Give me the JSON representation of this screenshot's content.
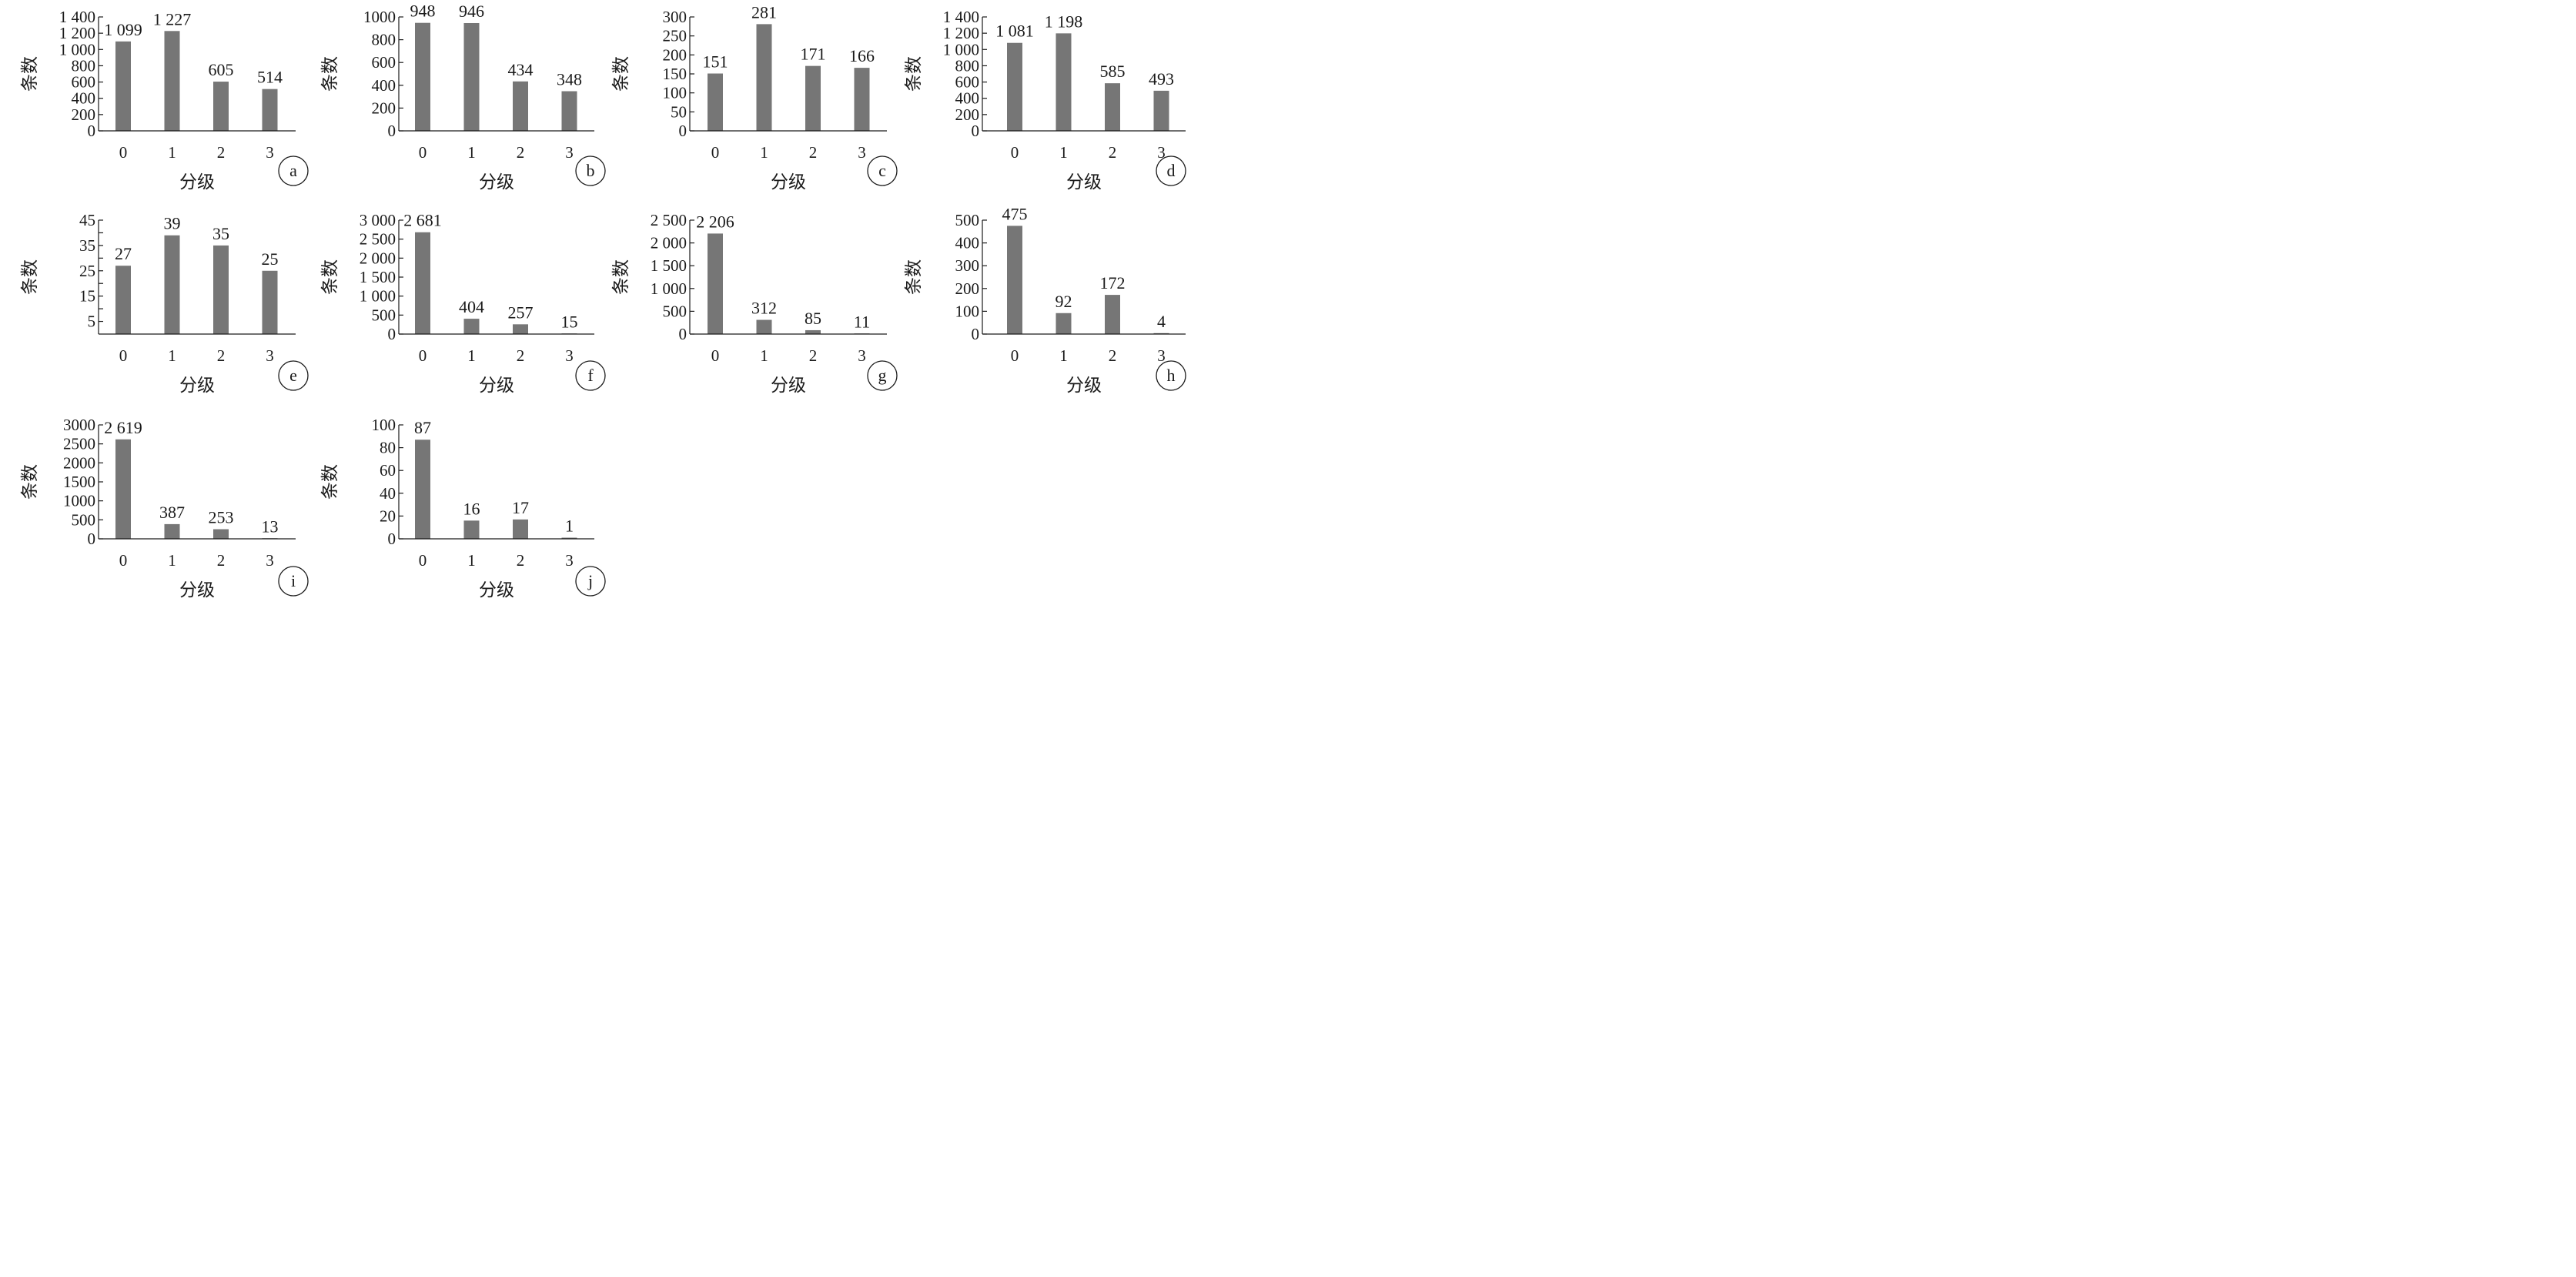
{
  "chart_data": [
    {
      "panel": "a",
      "type": "bar",
      "xlabel": "分级",
      "ylabel": "条数",
      "categories": [
        "0",
        "1",
        "2",
        "3"
      ],
      "values": [
        1099,
        1227,
        605,
        514
      ],
      "data_labels": [
        "1 099",
        "1 227",
        "605",
        "514"
      ],
      "ylim": [
        0,
        1400
      ],
      "yticks": [
        0,
        200,
        400,
        600,
        800,
        1000,
        1200,
        1400
      ],
      "ytick_labels": [
        "0",
        "200",
        "400",
        "600",
        "800",
        "1 000",
        "1 200",
        "1 400"
      ],
      "grid": false
    },
    {
      "panel": "b",
      "type": "bar",
      "xlabel": "分级",
      "ylabel": "条数",
      "categories": [
        "0",
        "1",
        "2",
        "3"
      ],
      "values": [
        948,
        946,
        434,
        348
      ],
      "data_labels": [
        "948",
        "946",
        "434",
        "348"
      ],
      "ylim": [
        0,
        1000
      ],
      "yticks": [
        0,
        200,
        400,
        600,
        800,
        1000
      ],
      "ytick_labels": [
        "0",
        "200",
        "400",
        "600",
        "800",
        "1000"
      ],
      "grid": false
    },
    {
      "panel": "c",
      "type": "bar",
      "xlabel": "分级",
      "ylabel": "条数",
      "categories": [
        "0",
        "1",
        "2",
        "3"
      ],
      "values": [
        151,
        281,
        171,
        166
      ],
      "data_labels": [
        "151",
        "281",
        "171",
        "166"
      ],
      "ylim": [
        0,
        300
      ],
      "yticks": [
        0,
        50,
        100,
        150,
        200,
        250,
        300
      ],
      "ytick_labels": [
        "0",
        "50",
        "100",
        "150",
        "200",
        "250",
        "300"
      ],
      "grid": false
    },
    {
      "panel": "d",
      "type": "bar",
      "xlabel": "分级",
      "ylabel": "条数",
      "categories": [
        "0",
        "1",
        "2",
        "3"
      ],
      "values": [
        1081,
        1198,
        585,
        493
      ],
      "data_labels": [
        "1 081",
        "1 198",
        "585",
        "493"
      ],
      "ylim": [
        0,
        1400
      ],
      "yticks": [
        0,
        200,
        400,
        600,
        800,
        1000,
        1200,
        1400
      ],
      "ytick_labels": [
        "0",
        "200",
        "400",
        "600",
        "800",
        "1 000",
        "1 200",
        "1 400"
      ],
      "grid": false
    },
    {
      "panel": "e",
      "type": "bar",
      "xlabel": "分级",
      "ylabel": "条数",
      "categories": [
        "0",
        "1",
        "2",
        "3"
      ],
      "values": [
        27,
        39,
        35,
        25
      ],
      "data_labels": [
        "27",
        "39",
        "35",
        "25"
      ],
      "ylim": [
        0,
        45
      ],
      "yticks": [
        5,
        15,
        25,
        35,
        45
      ],
      "ytick_labels": [
        "5",
        "15",
        "25",
        "35",
        "45"
      ],
      "minor_yticks": [
        10,
        20,
        30,
        40
      ],
      "grid": false
    },
    {
      "panel": "f",
      "type": "bar",
      "xlabel": "分级",
      "ylabel": "条数",
      "categories": [
        "0",
        "1",
        "2",
        "3"
      ],
      "values": [
        2681,
        404,
        257,
        15
      ],
      "data_labels": [
        "2 681",
        "404",
        "257",
        "15"
      ],
      "ylim": [
        0,
        3000
      ],
      "yticks": [
        0,
        500,
        1000,
        1500,
        2000,
        2500,
        3000
      ],
      "ytick_labels": [
        "0",
        "500",
        "1 000",
        "1 500",
        "2 000",
        "2 500",
        "3 000"
      ],
      "grid": false
    },
    {
      "panel": "g",
      "type": "bar",
      "xlabel": "分级",
      "ylabel": "条数",
      "categories": [
        "0",
        "1",
        "2",
        "3"
      ],
      "values": [
        2206,
        312,
        85,
        11
      ],
      "data_labels": [
        "2 206",
        "312",
        "85",
        "11"
      ],
      "ylim": [
        0,
        2500
      ],
      "yticks": [
        0,
        500,
        1000,
        1500,
        2000,
        2500
      ],
      "ytick_labels": [
        "0",
        "500",
        "1 000",
        "1 500",
        "2 000",
        "2 500"
      ],
      "grid": false
    },
    {
      "panel": "h",
      "type": "bar",
      "xlabel": "分级",
      "ylabel": "条数",
      "categories": [
        "0",
        "1",
        "2",
        "3"
      ],
      "values": [
        475,
        92,
        172,
        4
      ],
      "data_labels": [
        "475",
        "92",
        "172",
        "4"
      ],
      "ylim": [
        0,
        500
      ],
      "yticks": [
        0,
        100,
        200,
        300,
        400,
        500
      ],
      "ytick_labels": [
        "0",
        "100",
        "200",
        "300",
        "400",
        "500"
      ],
      "grid": false
    },
    {
      "panel": "i",
      "type": "bar",
      "xlabel": "分级",
      "ylabel": "条数",
      "categories": [
        "0",
        "1",
        "2",
        "3"
      ],
      "values": [
        2619,
        387,
        253,
        13
      ],
      "data_labels": [
        "2 619",
        "387",
        "253",
        "13"
      ],
      "ylim": [
        0,
        3000
      ],
      "yticks": [
        0,
        500,
        1000,
        1500,
        2000,
        2500,
        3000
      ],
      "ytick_labels": [
        "0",
        "500",
        "1000",
        "1500",
        "2000",
        "2500",
        "3000"
      ],
      "grid": false
    },
    {
      "panel": "j",
      "type": "bar",
      "xlabel": "分级",
      "ylabel": "条数",
      "categories": [
        "0",
        "1",
        "2",
        "3"
      ],
      "values": [
        87,
        16,
        17,
        1
      ],
      "data_labels": [
        "87",
        "16",
        "17",
        "1"
      ],
      "ylim": [
        0,
        100
      ],
      "yticks": [
        0,
        20,
        40,
        60,
        80,
        100
      ],
      "ytick_labels": [
        "0",
        "20",
        "40",
        "60",
        "80",
        "100"
      ],
      "grid": false
    }
  ],
  "colors": {
    "bar": "#767676",
    "axis": "#1a1a1a",
    "text": "#1a1a1a"
  }
}
